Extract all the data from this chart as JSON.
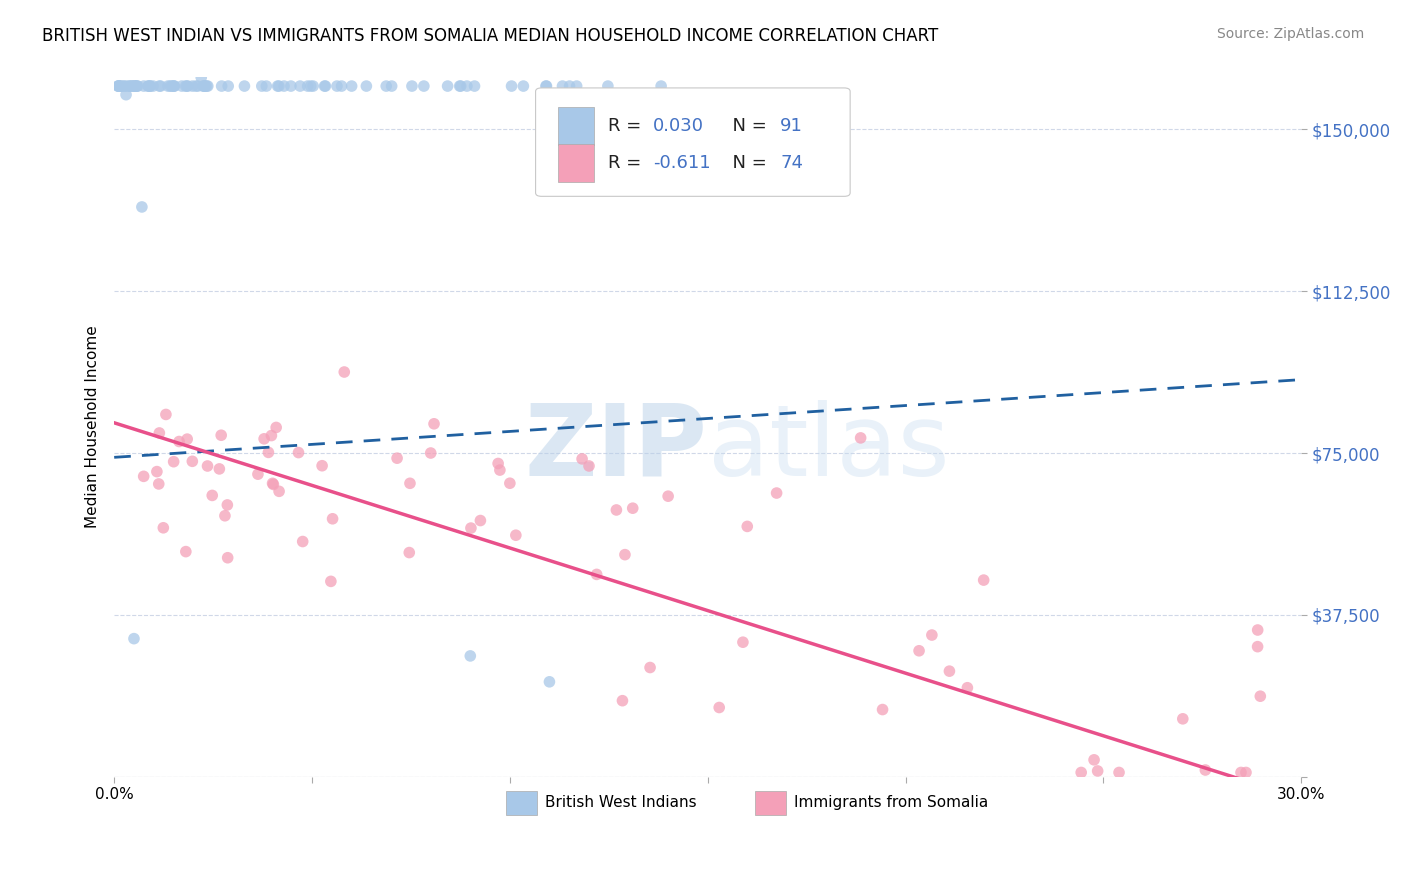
{
  "title": "BRITISH WEST INDIAN VS IMMIGRANTS FROM SOMALIA MEDIAN HOUSEHOLD INCOME CORRELATION CHART",
  "source": "Source: ZipAtlas.com",
  "ylabel": "Median Household Income",
  "xlim": [
    0.0,
    0.3
  ],
  "ylim": [
    0,
    162000
  ],
  "yticks": [
    0,
    37500,
    75000,
    112500,
    150000
  ],
  "ytick_labels": [
    "",
    "$37,500",
    "$75,000",
    "$112,500",
    "$150,000"
  ],
  "xticks": [
    0.0,
    0.05,
    0.1,
    0.15,
    0.2,
    0.25,
    0.3
  ],
  "xtick_labels": [
    "0.0%",
    "",
    "",
    "",
    "",
    "",
    "30.0%"
  ],
  "blue_R": 0.03,
  "blue_N": 91,
  "pink_R": -0.611,
  "pink_N": 74,
  "blue_color": "#a8c8e8",
  "pink_color": "#f4a0b8",
  "blue_line_color": "#2060a0",
  "pink_line_color": "#e8508a",
  "watermark_zip": "ZIP",
  "watermark_atlas": "atlas",
  "legend_label_blue": "British West Indians",
  "legend_label_pink": "Immigrants from Somalia",
  "background_color": "#ffffff",
  "grid_color": "#d0d8e8",
  "title_fontsize": 12,
  "axis_label_color": "#4472c4"
}
